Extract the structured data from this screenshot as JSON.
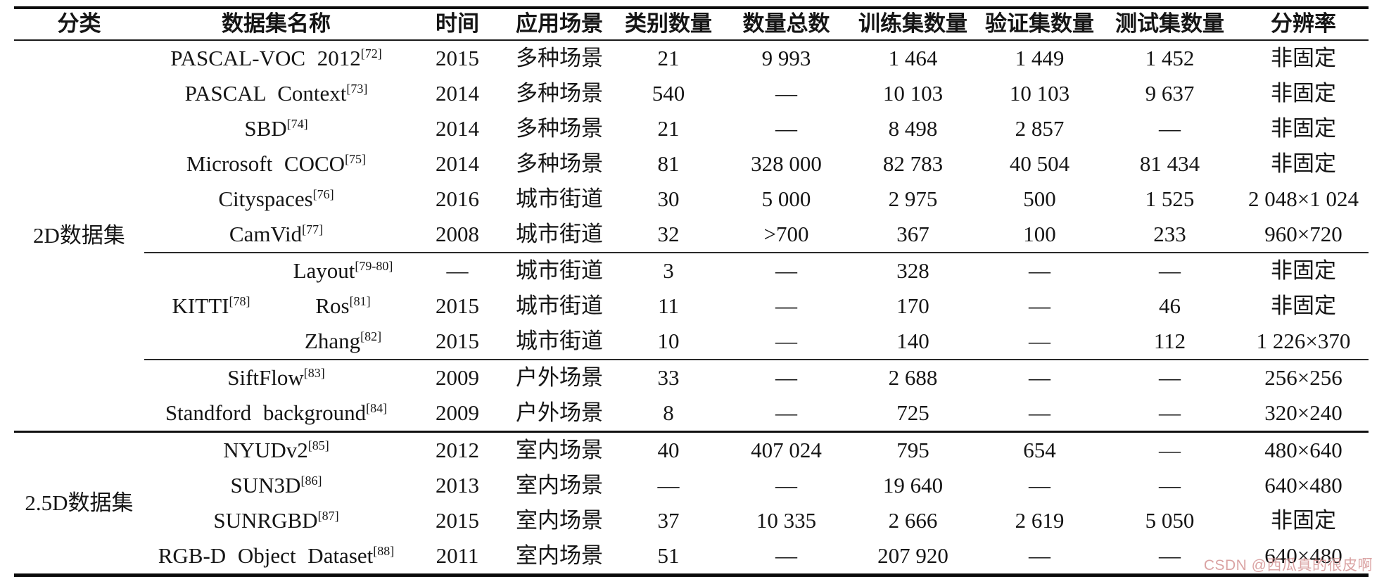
{
  "watermark": {
    "text": "CSDN @西瓜真的很皮啊"
  },
  "table": {
    "columns": [
      "分类",
      "数据集名称",
      "时间",
      "应用场景",
      "类别数量",
      "数量总数",
      "训练集数量",
      "验证集数量",
      "测试集数量",
      "分辨率"
    ],
    "groups": [
      {
        "label": "2D数据集",
        "rows": [
          {
            "name": "PASCAL-VOC 2012",
            "ref": "[72]",
            "time": "2015",
            "scene": "多种场景",
            "classes": "21",
            "total": "9 993",
            "train": "1 464",
            "val": "1 449",
            "test": "1 452",
            "resolution": "非固定"
          },
          {
            "name": "PASCAL Context",
            "ref": "[73]",
            "time": "2014",
            "scene": "多种场景",
            "classes": "540",
            "total": "—",
            "train": "10 103",
            "val": "10 103",
            "test": "9 637",
            "resolution": "非固定"
          },
          {
            "name": "SBD",
            "ref": "[74]",
            "time": "2014",
            "scene": "多种场景",
            "classes": "21",
            "total": "—",
            "train": "8 498",
            "val": "2 857",
            "test": "—",
            "resolution": "非固定"
          },
          {
            "name": "Microsoft COCO",
            "ref": "[75]",
            "time": "2014",
            "scene": "多种场景",
            "classes": "81",
            "total": "328 000",
            "train": "82 783",
            "val": "40 504",
            "test": "81 434",
            "resolution": "非固定"
          },
          {
            "name": "Cityspaces",
            "ref": "[76]",
            "time": "2016",
            "scene": "城市街道",
            "classes": "30",
            "total": "5 000",
            "train": "2 975",
            "val": "500",
            "test": "1 525",
            "resolution": "2 048×1 024"
          },
          {
            "name": "CamVid",
            "ref": "[77]",
            "time": "2008",
            "scene": "城市街道",
            "classes": "32",
            "total": ">700",
            "train": "367",
            "val": "100",
            "test": "233",
            "resolution": "960×720"
          },
          {
            "name": "Layout",
            "ref": "[79-80]",
            "in_subgroup": true,
            "rule_above": true,
            "subgroup": {
              "label": "KITTI",
              "ref": "[78]",
              "span": 3
            },
            "time": "—",
            "scene": "城市街道",
            "classes": "3",
            "total": "—",
            "train": "328",
            "val": "—",
            "test": "—",
            "resolution": "非固定"
          },
          {
            "name": "Ros",
            "ref": "[81]",
            "in_subgroup": true,
            "time": "2015",
            "scene": "城市街道",
            "classes": "11",
            "total": "—",
            "train": "170",
            "val": "—",
            "test": "46",
            "resolution": "非固定"
          },
          {
            "name": "Zhang",
            "ref": "[82]",
            "in_subgroup": true,
            "time": "2015",
            "scene": "城市街道",
            "classes": "10",
            "total": "—",
            "train": "140",
            "val": "—",
            "test": "112",
            "resolution": "1 226×370"
          },
          {
            "name": "SiftFlow",
            "ref": "[83]",
            "rule_above": true,
            "time": "2009",
            "scene": "户外场景",
            "classes": "33",
            "total": "—",
            "train": "2 688",
            "val": "—",
            "test": "—",
            "resolution": "256×256"
          },
          {
            "name": "Standford background",
            "ref": "[84]",
            "time": "2009",
            "scene": "户外场景",
            "classes": "8",
            "total": "—",
            "train": "725",
            "val": "—",
            "test": "—",
            "resolution": "320×240"
          }
        ]
      },
      {
        "label": "2.5D数据集",
        "rows": [
          {
            "name": "NYUDv2",
            "ref": "[85]",
            "time": "2012",
            "scene": "室内场景",
            "classes": "40",
            "total": "407 024",
            "train": "795",
            "val": "654",
            "test": "—",
            "resolution": "480×640"
          },
          {
            "name": "SUN3D",
            "ref": "[86]",
            "time": "2013",
            "scene": "室内场景",
            "classes": "—",
            "total": "—",
            "train": "19 640",
            "val": "—",
            "test": "—",
            "resolution": "640×480"
          },
          {
            "name": "SUNRGBD",
            "ref": "[87]",
            "time": "2015",
            "scene": "室内场景",
            "classes": "37",
            "total": "10 335",
            "train": "2 666",
            "val": "2 619",
            "test": "5 050",
            "resolution": "非固定"
          },
          {
            "name": "RGB-D Object Dataset",
            "ref": "[88]",
            "time": "2011",
            "scene": "室内场景",
            "classes": "51",
            "total": "—",
            "train": "207 920",
            "val": "—",
            "test": "—",
            "resolution": "640×480"
          }
        ]
      }
    ]
  }
}
